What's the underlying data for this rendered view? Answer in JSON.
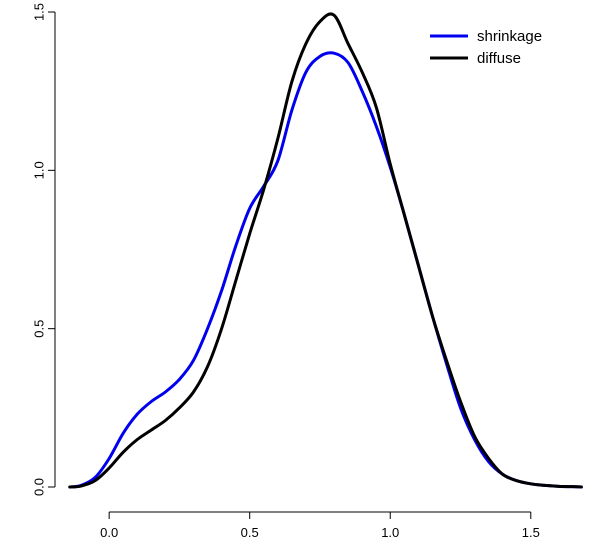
{
  "chart_data": {
    "type": "line",
    "title": "",
    "xlabel": "",
    "ylabel": "",
    "xlim": [
      -0.15,
      1.7
    ],
    "ylim": [
      0,
      1.5
    ],
    "x_ticks": [
      0.0,
      0.5,
      1.0,
      1.5
    ],
    "x_tick_labels": [
      "0.0",
      "0.5",
      "1.0",
      "1.5"
    ],
    "y_ticks": [
      0.0,
      0.5,
      1.0,
      1.5
    ],
    "y_tick_labels": [
      "0.0",
      "0.5",
      "1.0",
      "1.5"
    ],
    "grid": false,
    "legend_position": "top-right",
    "series": [
      {
        "name": "shrinkage",
        "color": "#0000ee",
        "x": [
          -0.14,
          -0.1,
          -0.05,
          0.0,
          0.05,
          0.1,
          0.15,
          0.2,
          0.25,
          0.3,
          0.35,
          0.4,
          0.45,
          0.5,
          0.55,
          0.6,
          0.65,
          0.7,
          0.75,
          0.8,
          0.85,
          0.9,
          0.95,
          1.0,
          1.05,
          1.1,
          1.15,
          1.2,
          1.25,
          1.3,
          1.35,
          1.4,
          1.45,
          1.5,
          1.55,
          1.6,
          1.65,
          1.68
        ],
        "y": [
          0.0,
          0.005,
          0.03,
          0.09,
          0.17,
          0.23,
          0.27,
          0.3,
          0.34,
          0.4,
          0.5,
          0.62,
          0.76,
          0.88,
          0.95,
          1.03,
          1.19,
          1.31,
          1.36,
          1.37,
          1.34,
          1.25,
          1.14,
          1.01,
          0.86,
          0.7,
          0.54,
          0.39,
          0.25,
          0.15,
          0.08,
          0.04,
          0.02,
          0.01,
          0.005,
          0.002,
          0.001,
          0.0
        ]
      },
      {
        "name": "diffuse",
        "color": "#000000",
        "x": [
          -0.14,
          -0.1,
          -0.05,
          0.0,
          0.05,
          0.1,
          0.15,
          0.2,
          0.25,
          0.3,
          0.35,
          0.4,
          0.45,
          0.5,
          0.55,
          0.6,
          0.65,
          0.7,
          0.75,
          0.8,
          0.85,
          0.9,
          0.95,
          1.0,
          1.05,
          1.1,
          1.15,
          1.2,
          1.25,
          1.3,
          1.35,
          1.4,
          1.45,
          1.5,
          1.55,
          1.6,
          1.65,
          1.68
        ],
        "y": [
          0.0,
          0.003,
          0.02,
          0.06,
          0.11,
          0.15,
          0.18,
          0.21,
          0.25,
          0.3,
          0.38,
          0.5,
          0.65,
          0.8,
          0.94,
          1.1,
          1.28,
          1.4,
          1.47,
          1.49,
          1.4,
          1.31,
          1.2,
          1.02,
          0.86,
          0.7,
          0.54,
          0.4,
          0.27,
          0.16,
          0.09,
          0.04,
          0.02,
          0.01,
          0.005,
          0.002,
          0.001,
          0.0
        ]
      }
    ]
  }
}
